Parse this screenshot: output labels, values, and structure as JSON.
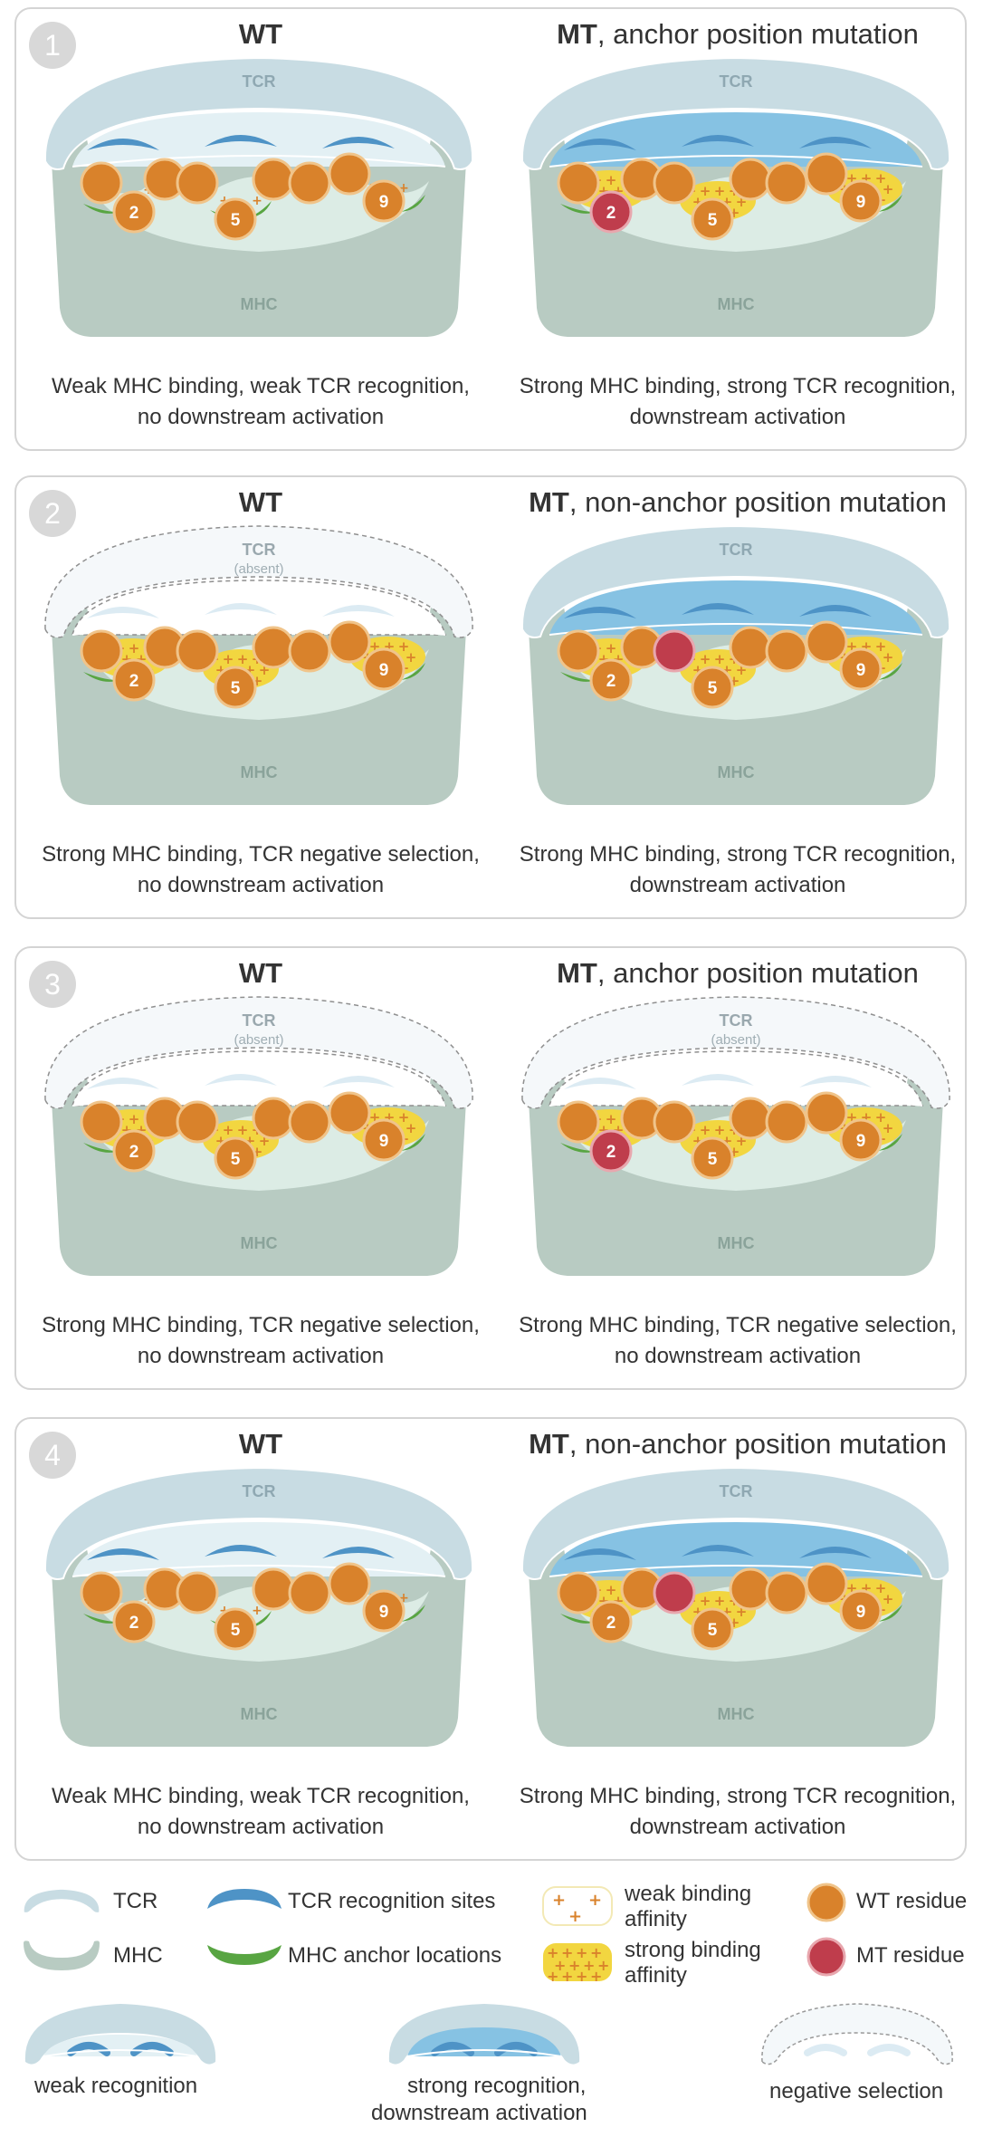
{
  "labels": {
    "tcr": "TCR",
    "mhc": "MHC",
    "absent": "(absent)"
  },
  "panels": [
    {
      "number": "1",
      "left": {
        "title_bold": "WT",
        "title_rest": "",
        "tcr": "weak",
        "binding": "weak",
        "mt_pos": null,
        "caption_line1": "Weak MHC binding, weak TCR recognition,",
        "caption_line2": "no downstream activation"
      },
      "right": {
        "title_bold": "MT",
        "title_rest": ", anchor position mutation",
        "tcr": "strong",
        "binding": "strong",
        "mt_pos": 2,
        "caption_line1": "Strong MHC binding, strong TCR recognition,",
        "caption_line2": "downstream activation"
      }
    },
    {
      "number": "2",
      "left": {
        "title_bold": "WT",
        "title_rest": "",
        "tcr": "absent",
        "binding": "strong",
        "mt_pos": null,
        "caption_line1": "Strong MHC binding, TCR negative selection,",
        "caption_line2": "no downstream activation"
      },
      "right": {
        "title_bold": "MT",
        "title_rest": ", non-anchor position mutation",
        "tcr": "strong",
        "binding": "strong",
        "mt_pos": 4,
        "caption_line1": "Strong MHC binding, strong TCR recognition,",
        "caption_line2": "downstream activation"
      }
    },
    {
      "number": "3",
      "left": {
        "title_bold": "WT",
        "title_rest": "",
        "tcr": "absent",
        "binding": "strong",
        "mt_pos": null,
        "caption_line1": "Strong MHC binding, TCR negative selection,",
        "caption_line2": "no downstream activation"
      },
      "right": {
        "title_bold": "MT",
        "title_rest": ", anchor position mutation",
        "tcr": "absent",
        "binding": "strong",
        "mt_pos": 2,
        "caption_line1": "Strong MHC binding, TCR negative selection,",
        "caption_line2": "no downstream activation"
      }
    },
    {
      "number": "4",
      "left": {
        "title_bold": "WT",
        "title_rest": "",
        "tcr": "weak",
        "binding": "weak",
        "mt_pos": null,
        "caption_line1": "Weak MHC binding, weak TCR recognition,",
        "caption_line2": "no downstream activation"
      },
      "right": {
        "title_bold": "MT",
        "title_rest": ", non-anchor position mutation",
        "tcr": "strong",
        "binding": "strong",
        "mt_pos": 4,
        "caption_line1": "Strong MHC binding, strong TCR recognition,",
        "caption_line2": "downstream activation"
      }
    }
  ],
  "legend": {
    "tcr": "TCR",
    "mhc": "MHC",
    "tcr_sites": "TCR recognition sites",
    "mhc_anchor": "MHC anchor locations",
    "weak_affinity_1": "weak binding",
    "weak_affinity_2": "affinity",
    "strong_affinity_1": "strong binding",
    "strong_affinity_2": "affinity",
    "wt_residue": "WT residue",
    "mt_residue": "MT residue",
    "weak_recognition": "weak recognition",
    "strong_recognition_1": "strong recognition,",
    "strong_recognition_2": "downstream activation",
    "negative_selection": "negative selection"
  },
  "colors": {
    "tcr": "#c8dce3",
    "tcr_strong": "#86c2e3",
    "tcr_site": "#4e93c6",
    "mhc": "#b8cbc2",
    "mhc_inner": "#dcece5",
    "anchor": "#58a542",
    "wt": "#d9822b",
    "mt": "#bf3d4c",
    "strong_binding": "#f2d640",
    "plus": "#d9822b"
  }
}
